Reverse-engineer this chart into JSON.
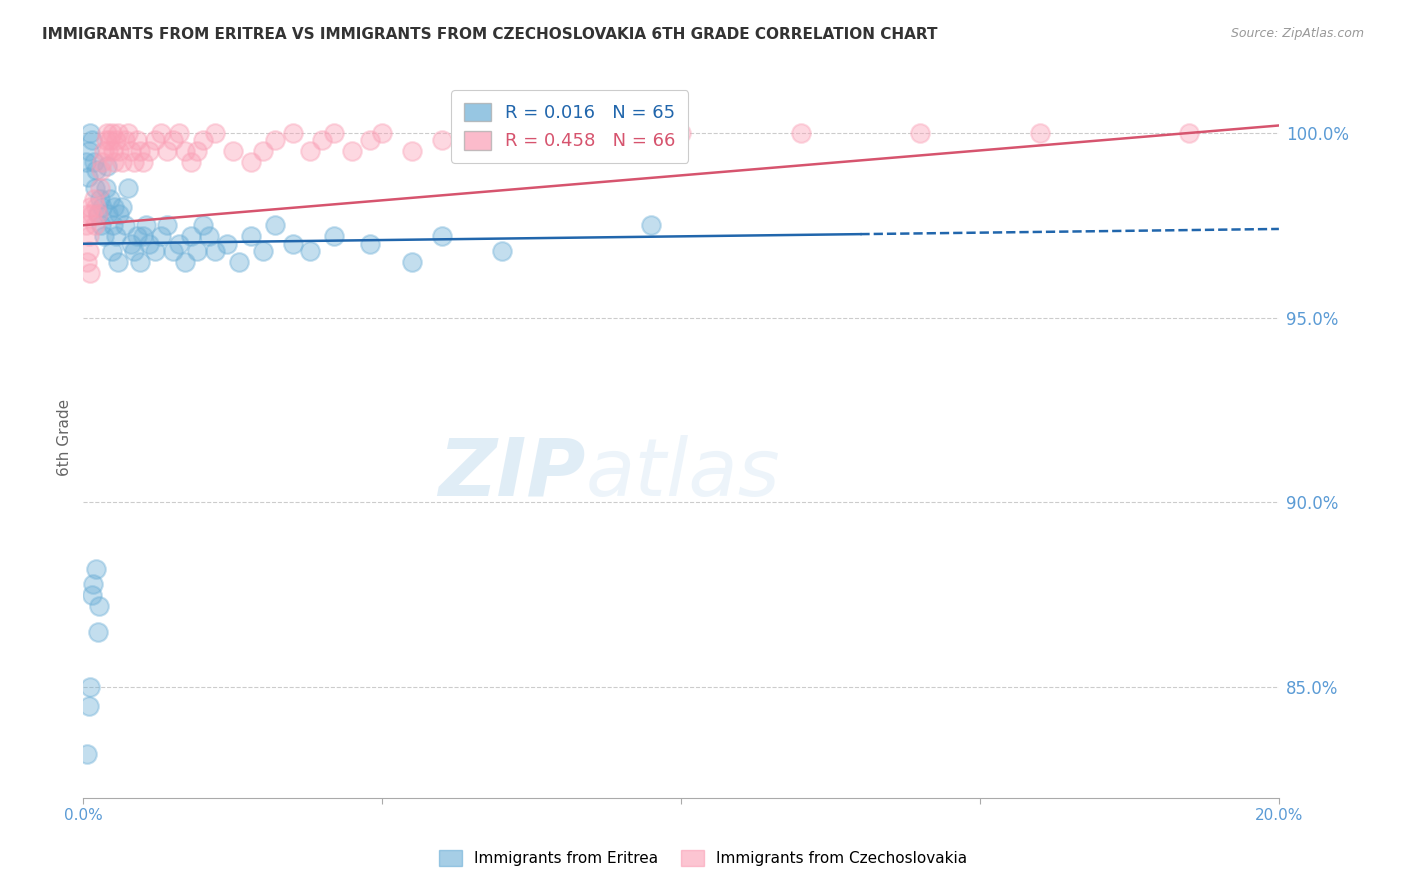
{
  "title": "IMMIGRANTS FROM ERITREA VS IMMIGRANTS FROM CZECHOSLOVAKIA 6TH GRADE CORRELATION CHART",
  "source": "Source: ZipAtlas.com",
  "ylabel": "6th Grade",
  "y_ticks_right": [
    100.0,
    95.0,
    90.0,
    85.0
  ],
  "y_ticks_right_labels": [
    "100.0%",
    "95.0%",
    "90.0%",
    "85.0%"
  ],
  "xlim": [
    0.0,
    20.0
  ],
  "ylim": [
    82.0,
    101.5
  ],
  "legend_eritrea": "R = 0.016   N = 65",
  "legend_czechoslovakia": "R = 0.458   N = 66",
  "legend_label_eritrea": "Immigrants from Eritrea",
  "legend_label_czechoslovakia": "Immigrants from Czechoslovakia",
  "color_eritrea": "#6baed6",
  "color_czechoslovakia": "#fa9fb5",
  "trendline_eritrea_color": "#2166ac",
  "trendline_czechoslovakia_color": "#d6546e",
  "background_color": "#ffffff",
  "grid_color": "#cccccc",
  "axis_label_color": "#5b9bd5",
  "title_color": "#333333",
  "watermark": "ZIPatlas",
  "trendline_split_x": 13.0,
  "scatter_eritrea_x": [
    0.05,
    0.08,
    0.1,
    0.12,
    0.15,
    0.18,
    0.2,
    0.22,
    0.25,
    0.28,
    0.3,
    0.32,
    0.35,
    0.38,
    0.4,
    0.42,
    0.45,
    0.48,
    0.5,
    0.52,
    0.55,
    0.58,
    0.6,
    0.65,
    0.7,
    0.75,
    0.8,
    0.85,
    0.9,
    0.95,
    1.0,
    1.05,
    1.1,
    1.2,
    1.3,
    1.4,
    1.5,
    1.6,
    1.7,
    1.8,
    1.9,
    2.0,
    2.1,
    2.2,
    2.4,
    2.6,
    2.8,
    3.0,
    3.2,
    3.5,
    3.8,
    4.2,
    4.8,
    5.5,
    6.0,
    7.0,
    9.5,
    0.06,
    0.09,
    0.11,
    0.14,
    0.17,
    0.21,
    0.24,
    0.27
  ],
  "scatter_eritrea_y": [
    99.2,
    98.8,
    99.5,
    100.0,
    99.8,
    99.2,
    98.5,
    99.0,
    97.8,
    98.2,
    97.5,
    98.0,
    97.2,
    98.5,
    99.1,
    97.8,
    98.2,
    96.8,
    97.5,
    98.0,
    97.2,
    96.5,
    97.8,
    98.0,
    97.5,
    98.5,
    97.0,
    96.8,
    97.2,
    96.5,
    97.2,
    97.5,
    97.0,
    96.8,
    97.2,
    97.5,
    96.8,
    97.0,
    96.5,
    97.2,
    96.8,
    97.5,
    97.2,
    96.8,
    97.0,
    96.5,
    97.2,
    96.8,
    97.5,
    97.0,
    96.8,
    97.2,
    97.0,
    96.5,
    97.2,
    96.8,
    97.5,
    83.2,
    84.5,
    85.0,
    87.5,
    87.8,
    88.2,
    86.5,
    87.2
  ],
  "scatter_czechoslovakia_x": [
    0.05,
    0.08,
    0.1,
    0.12,
    0.15,
    0.18,
    0.2,
    0.22,
    0.25,
    0.28,
    0.3,
    0.32,
    0.35,
    0.38,
    0.4,
    0.42,
    0.45,
    0.48,
    0.5,
    0.52,
    0.55,
    0.58,
    0.6,
    0.65,
    0.7,
    0.75,
    0.8,
    0.85,
    0.9,
    0.95,
    1.0,
    1.1,
    1.2,
    1.3,
    1.4,
    1.5,
    1.6,
    1.7,
    1.8,
    1.9,
    2.0,
    2.2,
    2.5,
    2.8,
    3.0,
    3.2,
    3.5,
    3.8,
    4.0,
    4.2,
    4.5,
    4.8,
    5.0,
    5.5,
    6.0,
    7.0,
    8.0,
    9.0,
    10.0,
    12.0,
    14.0,
    16.0,
    18.5,
    0.06,
    0.09,
    0.11
  ],
  "scatter_czechoslovakia_y": [
    97.5,
    97.8,
    97.2,
    98.0,
    97.8,
    98.2,
    97.5,
    98.0,
    97.8,
    98.5,
    99.0,
    99.2,
    99.5,
    99.8,
    100.0,
    99.5,
    99.8,
    100.0,
    99.5,
    99.2,
    99.8,
    100.0,
    99.5,
    99.2,
    99.8,
    100.0,
    99.5,
    99.2,
    99.8,
    99.5,
    99.2,
    99.5,
    99.8,
    100.0,
    99.5,
    99.8,
    100.0,
    99.5,
    99.2,
    99.5,
    99.8,
    100.0,
    99.5,
    99.2,
    99.5,
    99.8,
    100.0,
    99.5,
    99.8,
    100.0,
    99.5,
    99.8,
    100.0,
    99.5,
    99.8,
    100.0,
    99.5,
    99.8,
    100.0,
    100.0,
    100.0,
    100.0,
    100.0,
    96.5,
    96.8,
    96.2
  ]
}
